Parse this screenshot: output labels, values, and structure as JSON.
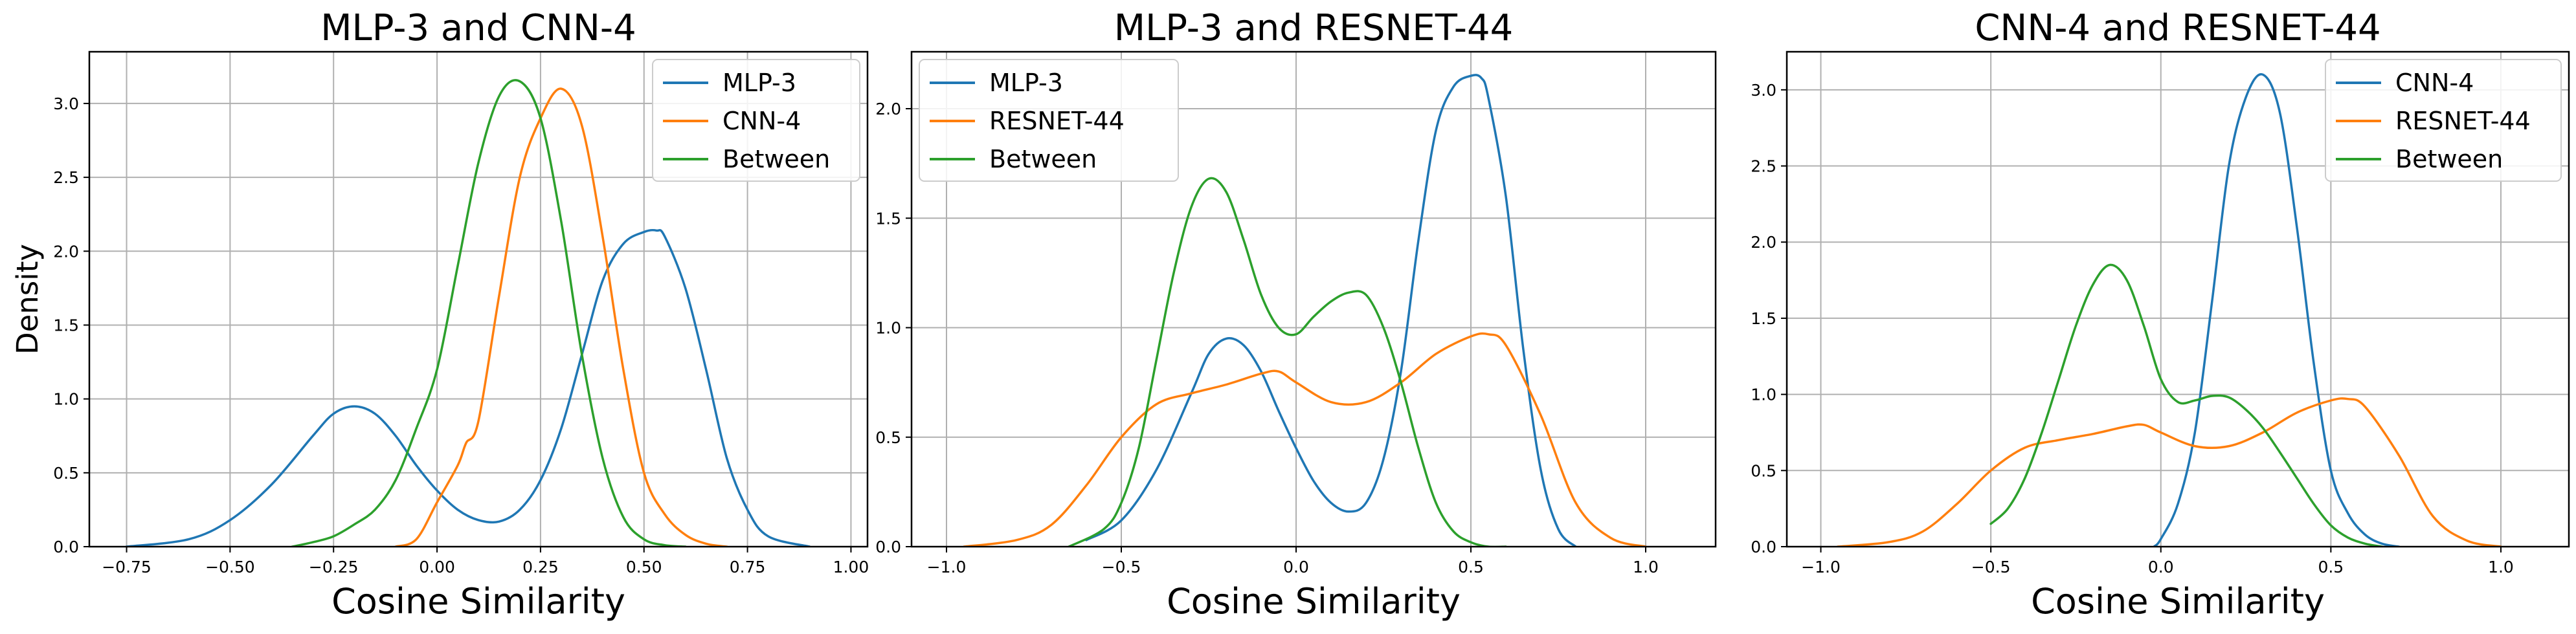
{
  "colors": {
    "blue": "#1f77b4",
    "orange": "#ff7f0e",
    "green": "#2ca02c"
  },
  "chart_data": [
    {
      "type": "line",
      "title": "MLP-3 and CNN-4",
      "xlabel": "Cosine Similarity",
      "ylabel": "Density",
      "xlim": [
        -0.84,
        1.04
      ],
      "ylim": [
        0,
        3.35
      ],
      "xticks": [
        -0.75,
        -0.5,
        -0.25,
        0,
        0.25,
        0.5,
        0.75,
        1.0
      ],
      "xtick_labels": [
        "−0.75",
        "−0.50",
        "−0.25",
        "0.00",
        "0.25",
        "0.50",
        "0.75",
        "1.00"
      ],
      "yticks": [
        0,
        0.5,
        1.0,
        1.5,
        2.0,
        2.5,
        3.0
      ],
      "ytick_labels": [
        "0.0",
        "0.5",
        "1.0",
        "1.5",
        "2.0",
        "2.5",
        "3.0"
      ],
      "grid": true,
      "legend_position": "top-right",
      "series": [
        {
          "name": "MLP-3",
          "color": "#1f77b4",
          "x": [
            -0.75,
            -0.6,
            -0.5,
            -0.4,
            -0.3,
            -0.25,
            -0.2,
            -0.15,
            -0.1,
            -0.05,
            0.0,
            0.05,
            0.1,
            0.15,
            0.2,
            0.25,
            0.3,
            0.35,
            0.4,
            0.45,
            0.5,
            0.53,
            0.55,
            0.6,
            0.65,
            0.7,
            0.75,
            0.8,
            0.9
          ],
          "y": [
            0.0,
            0.05,
            0.18,
            0.42,
            0.75,
            0.9,
            0.95,
            0.9,
            0.75,
            0.55,
            0.38,
            0.25,
            0.18,
            0.17,
            0.25,
            0.45,
            0.8,
            1.3,
            1.8,
            2.05,
            2.13,
            2.14,
            2.1,
            1.75,
            1.2,
            0.6,
            0.25,
            0.07,
            0.0
          ]
        },
        {
          "name": "CNN-4",
          "color": "#ff7f0e",
          "x": [
            -0.1,
            -0.05,
            0.0,
            0.05,
            0.07,
            0.1,
            0.15,
            0.2,
            0.25,
            0.3,
            0.35,
            0.4,
            0.45,
            0.5,
            0.55,
            0.6,
            0.65,
            0.7
          ],
          "y": [
            0.0,
            0.05,
            0.3,
            0.55,
            0.7,
            0.85,
            1.7,
            2.5,
            2.9,
            3.1,
            2.85,
            2.1,
            1.2,
            0.5,
            0.22,
            0.08,
            0.02,
            0.0
          ]
        },
        {
          "name": "Between",
          "color": "#2ca02c",
          "x": [
            -0.35,
            -0.3,
            -0.25,
            -0.2,
            -0.15,
            -0.1,
            -0.05,
            0.0,
            0.05,
            0.1,
            0.15,
            0.2,
            0.25,
            0.3,
            0.35,
            0.4,
            0.45,
            0.5,
            0.55,
            0.6
          ],
          "y": [
            0.0,
            0.03,
            0.07,
            0.15,
            0.25,
            0.45,
            0.8,
            1.2,
            1.9,
            2.6,
            3.05,
            3.15,
            2.9,
            2.2,
            1.3,
            0.6,
            0.2,
            0.05,
            0.01,
            0.0
          ]
        }
      ]
    },
    {
      "type": "line",
      "title": "MLP-3 and RESNET-44",
      "xlabel": "Cosine Similarity",
      "ylabel": "",
      "xlim": [
        -1.1,
        1.2
      ],
      "ylim": [
        0,
        2.26
      ],
      "xticks": [
        -1.0,
        -0.5,
        0.0,
        0.5,
        1.0
      ],
      "xtick_labels": [
        "−1.0",
        "−0.5",
        "0.0",
        "0.5",
        "1.0"
      ],
      "yticks": [
        0,
        0.5,
        1.0,
        1.5,
        2.0
      ],
      "ytick_labels": [
        "0.0",
        "0.5",
        "1.0",
        "1.5",
        "2.0"
      ],
      "grid": true,
      "legend_position": "top-left",
      "series": [
        {
          "name": "MLP-3",
          "color": "#1f77b4",
          "x": [
            -0.6,
            -0.5,
            -0.4,
            -0.3,
            -0.25,
            -0.2,
            -0.15,
            -0.1,
            -0.05,
            0.0,
            0.05,
            0.1,
            0.15,
            0.2,
            0.25,
            0.3,
            0.35,
            0.4,
            0.45,
            0.5,
            0.53,
            0.55,
            0.6,
            0.65,
            0.7,
            0.75,
            0.8
          ],
          "y": [
            0.03,
            0.12,
            0.35,
            0.7,
            0.88,
            0.95,
            0.92,
            0.8,
            0.62,
            0.45,
            0.3,
            0.2,
            0.16,
            0.2,
            0.4,
            0.8,
            1.4,
            1.9,
            2.1,
            2.15,
            2.14,
            2.05,
            1.6,
            0.9,
            0.35,
            0.08,
            0.0
          ]
        },
        {
          "name": "RESNET-44",
          "color": "#ff7f0e",
          "x": [
            -0.95,
            -0.8,
            -0.7,
            -0.6,
            -0.5,
            -0.4,
            -0.3,
            -0.2,
            -0.1,
            -0.05,
            0.0,
            0.1,
            0.2,
            0.3,
            0.4,
            0.5,
            0.55,
            0.6,
            0.7,
            0.8,
            0.9,
            1.0
          ],
          "y": [
            0.0,
            0.03,
            0.1,
            0.28,
            0.5,
            0.65,
            0.7,
            0.74,
            0.79,
            0.8,
            0.75,
            0.66,
            0.66,
            0.75,
            0.88,
            0.96,
            0.97,
            0.92,
            0.6,
            0.2,
            0.04,
            0.0
          ]
        },
        {
          "name": "Between",
          "color": "#2ca02c",
          "x": [
            -0.65,
            -0.55,
            -0.5,
            -0.45,
            -0.4,
            -0.35,
            -0.3,
            -0.25,
            -0.2,
            -0.15,
            -0.1,
            -0.05,
            0.0,
            0.05,
            0.1,
            0.15,
            0.2,
            0.25,
            0.3,
            0.35,
            0.4,
            0.45,
            0.5,
            0.55,
            0.6
          ],
          "y": [
            0.0,
            0.08,
            0.2,
            0.45,
            0.85,
            1.25,
            1.55,
            1.68,
            1.62,
            1.4,
            1.15,
            1.0,
            0.97,
            1.05,
            1.12,
            1.16,
            1.15,
            1.0,
            0.75,
            0.45,
            0.2,
            0.07,
            0.02,
            0.0,
            0.0
          ]
        }
      ]
    },
    {
      "type": "line",
      "title": "CNN-4 and RESNET-44",
      "xlabel": "Cosine Similarity",
      "ylabel": "",
      "xlim": [
        -1.1,
        1.2
      ],
      "ylim": [
        0,
        3.25
      ],
      "xticks": [
        -1.0,
        -0.5,
        0.0,
        0.5,
        1.0
      ],
      "xtick_labels": [
        "−1.0",
        "−0.5",
        "0.0",
        "0.5",
        "1.0"
      ],
      "yticks": [
        0,
        0.5,
        1.0,
        1.5,
        2.0,
        2.5,
        3.0
      ],
      "ytick_labels": [
        "0.0",
        "0.5",
        "1.0",
        "1.5",
        "2.0",
        "2.5",
        "3.0"
      ],
      "grid": true,
      "legend_position": "top-right",
      "series": [
        {
          "name": "CNN-4",
          "color": "#1f77b4",
          "x": [
            -0.02,
            0.0,
            0.05,
            0.1,
            0.15,
            0.2,
            0.25,
            0.3,
            0.35,
            0.4,
            0.45,
            0.5,
            0.55,
            0.6,
            0.65,
            0.7
          ],
          "y": [
            0.0,
            0.05,
            0.28,
            0.75,
            1.6,
            2.5,
            2.95,
            3.1,
            2.85,
            2.1,
            1.2,
            0.5,
            0.22,
            0.08,
            0.02,
            0.0
          ]
        },
        {
          "name": "RESNET-44",
          "color": "#ff7f0e",
          "x": [
            -0.95,
            -0.8,
            -0.7,
            -0.6,
            -0.5,
            -0.4,
            -0.3,
            -0.2,
            -0.1,
            -0.05,
            0.0,
            0.1,
            0.2,
            0.3,
            0.4,
            0.5,
            0.55,
            0.6,
            0.7,
            0.8,
            0.9,
            1.0
          ],
          "y": [
            0.0,
            0.03,
            0.1,
            0.28,
            0.5,
            0.65,
            0.7,
            0.74,
            0.79,
            0.8,
            0.75,
            0.66,
            0.66,
            0.75,
            0.88,
            0.96,
            0.97,
            0.92,
            0.6,
            0.2,
            0.04,
            0.0
          ]
        },
        {
          "name": "Between",
          "color": "#2ca02c",
          "x": [
            -0.5,
            -0.45,
            -0.4,
            -0.35,
            -0.3,
            -0.25,
            -0.2,
            -0.15,
            -0.1,
            -0.05,
            0.0,
            0.05,
            0.1,
            0.15,
            0.2,
            0.25,
            0.3,
            0.35,
            0.4,
            0.45,
            0.5,
            0.55,
            0.6,
            0.65
          ],
          "y": [
            0.15,
            0.25,
            0.45,
            0.75,
            1.1,
            1.45,
            1.72,
            1.85,
            1.75,
            1.45,
            1.1,
            0.95,
            0.96,
            0.99,
            0.98,
            0.9,
            0.78,
            0.62,
            0.45,
            0.28,
            0.14,
            0.06,
            0.02,
            0.0
          ]
        }
      ]
    }
  ]
}
